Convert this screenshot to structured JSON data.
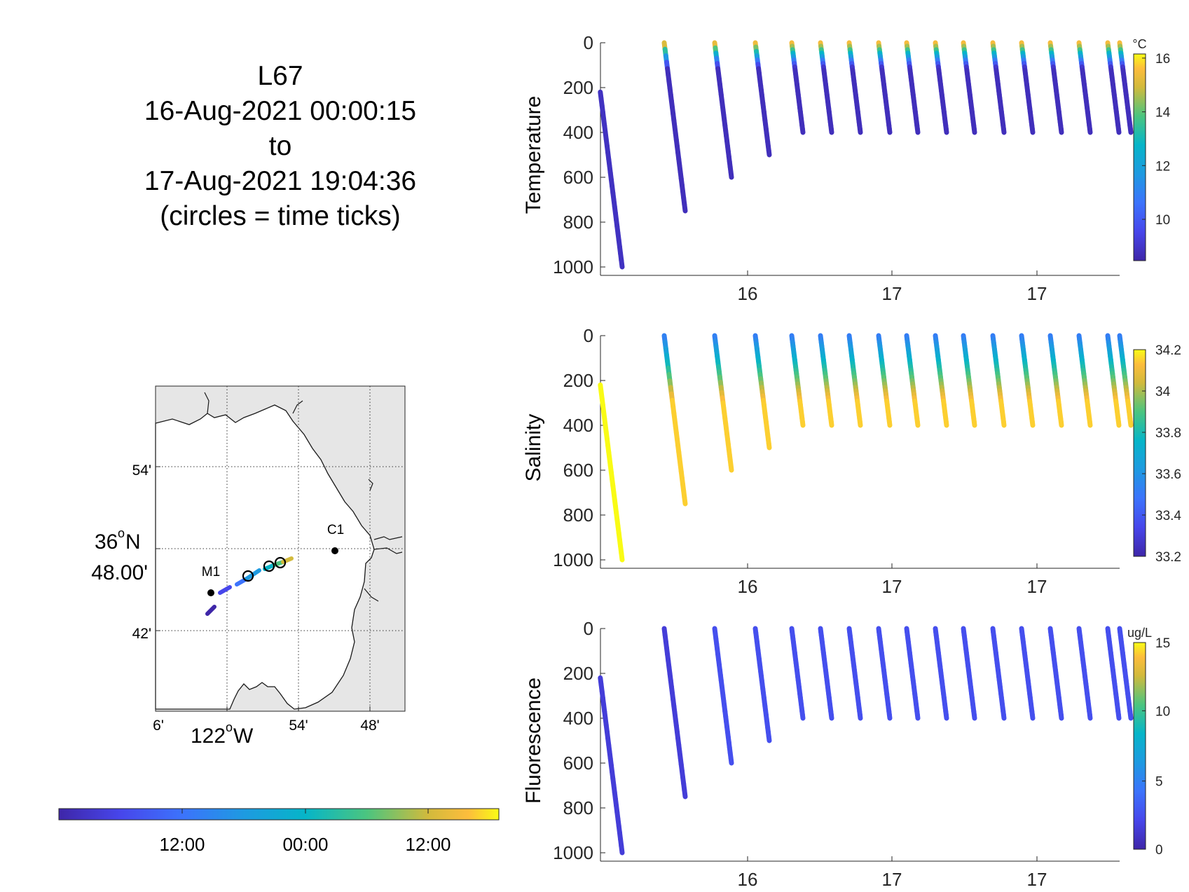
{
  "title": {
    "lines": [
      "L67",
      "16-Aug-2021 00:00:15",
      "to",
      "17-Aug-2021 19:04:36",
      "(circles = time ticks)"
    ]
  },
  "map": {
    "lat_ticks": [
      "54'",
      "42'"
    ],
    "lat_center_label_deg": "36",
    "lat_center_label_hem": "N",
    "lat_center_label_min": "48.00'",
    "lon_ticks": [
      "6'",
      "54'",
      "48'"
    ],
    "lon_center_label_deg": "122",
    "lon_center_label_hem": "W",
    "stations": [
      "M1",
      "C1"
    ],
    "land_color": "#e6e6e6",
    "sea_color": "#ffffff"
  },
  "time_colorbar": {
    "tick_labels": [
      "12:00",
      "00:00",
      "12:00"
    ]
  },
  "chart_data": [
    {
      "type": "scatter",
      "name": "temperature-panel",
      "ylabel": "Temperature",
      "y_reversed": true,
      "ylim": [
        0,
        1000
      ],
      "yticks": [
        0,
        200,
        400,
        600,
        800,
        1000
      ],
      "xtick_labels": [
        "16",
        "17",
        "17"
      ],
      "colorbar": {
        "unit": "°C",
        "range": [
          8.5,
          16.2
        ],
        "ticks": [
          "10",
          "12",
          "14",
          "16"
        ]
      },
      "profiles": [
        {
          "max_depth": 1000,
          "surface_value": 9.0
        },
        {
          "max_depth": 750,
          "surface_value": 16.0
        },
        {
          "max_depth": 600,
          "surface_value": 16.0
        },
        {
          "max_depth": 500,
          "surface_value": 16.0
        },
        {
          "max_depth": 400,
          "surface_value": 16.0
        },
        {
          "max_depth": 400,
          "surface_value": 16.0
        },
        {
          "max_depth": 400,
          "surface_value": 16.0
        },
        {
          "max_depth": 400,
          "surface_value": 16.0
        },
        {
          "max_depth": 400,
          "surface_value": 16.0
        },
        {
          "max_depth": 400,
          "surface_value": 16.0
        },
        {
          "max_depth": 400,
          "surface_value": 16.0
        },
        {
          "max_depth": 400,
          "surface_value": 16.0
        },
        {
          "max_depth": 400,
          "surface_value": 16.0
        },
        {
          "max_depth": 400,
          "surface_value": 16.0
        },
        {
          "max_depth": 400,
          "surface_value": 16.0
        },
        {
          "max_depth": 400,
          "surface_value": 16.0
        },
        {
          "max_depth": 400,
          "surface_value": 16.0
        }
      ]
    },
    {
      "type": "scatter",
      "name": "salinity-panel",
      "ylabel": "Salinity",
      "y_reversed": true,
      "ylim": [
        0,
        1000
      ],
      "yticks": [
        0,
        200,
        400,
        600,
        800,
        1000
      ],
      "xtick_labels": [
        "16",
        "17",
        "17"
      ],
      "colorbar": {
        "unit": "",
        "range": [
          33.2,
          34.2
        ],
        "ticks": [
          "34.2",
          "34",
          "33.8",
          "33.6",
          "33.4",
          "33.2"
        ]
      },
      "profiles": [
        {
          "max_depth": 1000,
          "surface_value": 34.2
        },
        {
          "max_depth": 750,
          "surface_value": 33.5
        },
        {
          "max_depth": 600,
          "surface_value": 33.5
        },
        {
          "max_depth": 500,
          "surface_value": 33.5
        },
        {
          "max_depth": 400,
          "surface_value": 33.5
        },
        {
          "max_depth": 400,
          "surface_value": 33.5
        },
        {
          "max_depth": 400,
          "surface_value": 33.5
        },
        {
          "max_depth": 400,
          "surface_value": 33.5
        },
        {
          "max_depth": 400,
          "surface_value": 33.5
        },
        {
          "max_depth": 400,
          "surface_value": 33.5
        },
        {
          "max_depth": 400,
          "surface_value": 33.5
        },
        {
          "max_depth": 400,
          "surface_value": 33.5
        },
        {
          "max_depth": 400,
          "surface_value": 33.5
        },
        {
          "max_depth": 400,
          "surface_value": 33.5
        },
        {
          "max_depth": 400,
          "surface_value": 33.5
        },
        {
          "max_depth": 400,
          "surface_value": 33.5
        },
        {
          "max_depth": 400,
          "surface_value": 33.5
        }
      ]
    },
    {
      "type": "scatter",
      "name": "fluorescence-panel",
      "ylabel": "Fluorescence",
      "y_reversed": true,
      "ylim": [
        0,
        1000
      ],
      "yticks": [
        0,
        200,
        400,
        600,
        800,
        1000
      ],
      "xtick_labels": [
        "16",
        "17",
        "17"
      ],
      "colorbar": {
        "unit": "ug/L",
        "range": [
          0,
          15
        ],
        "ticks": [
          "15",
          "10",
          "5",
          "0"
        ]
      },
      "profiles": [
        {
          "max_depth": 1000,
          "surface_value": 1.5
        },
        {
          "max_depth": 750,
          "surface_value": 1.5
        },
        {
          "max_depth": 600,
          "surface_value": 2.5
        },
        {
          "max_depth": 500,
          "surface_value": 2.5
        },
        {
          "max_depth": 400,
          "surface_value": 2.5
        },
        {
          "max_depth": 400,
          "surface_value": 2.5
        },
        {
          "max_depth": 400,
          "surface_value": 2.5
        },
        {
          "max_depth": 400,
          "surface_value": 2.5
        },
        {
          "max_depth": 400,
          "surface_value": 2.5
        },
        {
          "max_depth": 400,
          "surface_value": 2.5
        },
        {
          "max_depth": 400,
          "surface_value": 2.5
        },
        {
          "max_depth": 400,
          "surface_value": 2.5
        },
        {
          "max_depth": 400,
          "surface_value": 2.5
        },
        {
          "max_depth": 400,
          "surface_value": 2.5
        },
        {
          "max_depth": 400,
          "surface_value": 2.5
        },
        {
          "max_depth": 400,
          "surface_value": 2.5
        },
        {
          "max_depth": 400,
          "surface_value": 2.5
        }
      ]
    }
  ]
}
